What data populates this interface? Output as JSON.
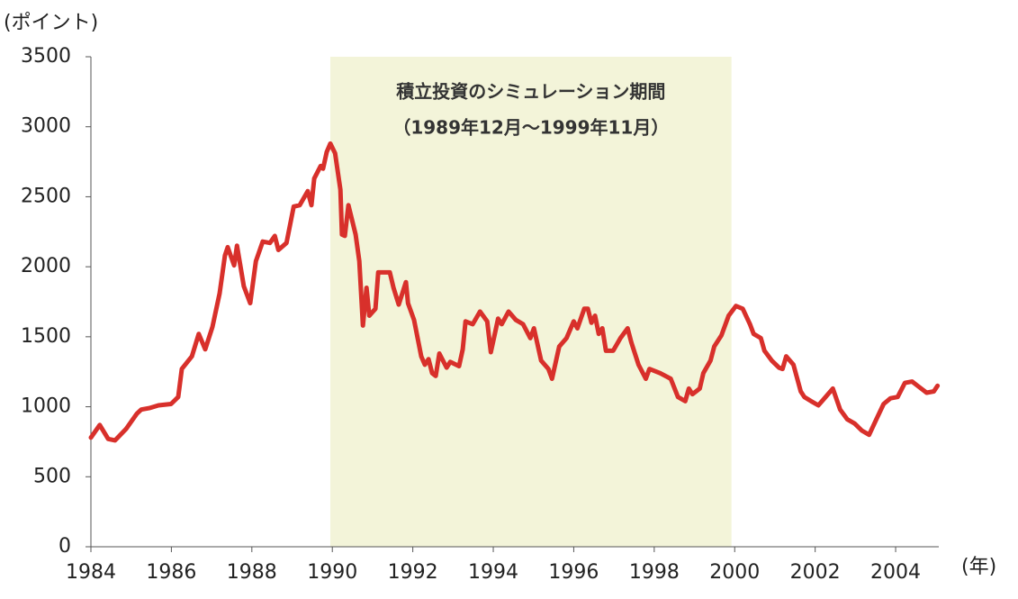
{
  "chart_data": {
    "type": "line",
    "y_axis_label": "(ポイント)",
    "x_axis_label": "(年)",
    "shaded_region": {
      "x": [
        1989.95,
        1999.92
      ],
      "label": [
        "積立投資のシミュレーション期間",
        "（1989年12月～1999年11月）"
      ],
      "color": "#f3f4d9"
    },
    "xlim": [
      1984,
      2005.05
    ],
    "xticks": [
      1984,
      1986,
      1988,
      1990,
      1992,
      1994,
      1996,
      1998,
      2000,
      2002,
      2004
    ],
    "ylim": [
      0,
      3500
    ],
    "yticks": [
      0,
      500,
      1000,
      1500,
      2000,
      2500,
      3000,
      3500
    ],
    "series": [
      {
        "color": "#d8302b",
        "x": [
          1984.0,
          1984.22,
          1984.43,
          1984.6,
          1984.87,
          1985.14,
          1985.25,
          1985.45,
          1985.68,
          1985.99,
          1986.17,
          1986.26,
          1986.51,
          1986.68,
          1986.84,
          1987.02,
          1987.2,
          1987.33,
          1987.4,
          1987.56,
          1987.63,
          1987.8,
          1987.96,
          1988.1,
          1988.27,
          1988.45,
          1988.57,
          1988.66,
          1988.86,
          1989.04,
          1989.19,
          1989.39,
          1989.48,
          1989.55,
          1989.71,
          1989.77,
          1989.86,
          1989.95,
          1990.07,
          1990.2,
          1990.24,
          1990.31,
          1990.4,
          1990.58,
          1990.67,
          1990.76,
          1990.85,
          1990.92,
          1991.07,
          1991.14,
          1991.43,
          1991.52,
          1991.65,
          1991.83,
          1991.88,
          1992.03,
          1992.21,
          1992.3,
          1992.39,
          1992.48,
          1992.57,
          1992.66,
          1992.84,
          1992.93,
          1993.15,
          1993.24,
          1993.31,
          1993.49,
          1993.67,
          1993.85,
          1993.94,
          1994.03,
          1994.12,
          1994.21,
          1994.38,
          1994.56,
          1994.74,
          1994.92,
          1995.01,
          1995.19,
          1995.37,
          1995.46,
          1995.64,
          1995.82,
          1996.0,
          1996.09,
          1996.26,
          1996.35,
          1996.44,
          1996.53,
          1996.62,
          1996.71,
          1996.8,
          1996.98,
          1997.16,
          1997.34,
          1997.43,
          1997.61,
          1997.79,
          1997.88,
          1998.15,
          1998.41,
          1998.59,
          1998.77,
          1998.86,
          1998.95,
          1999.13,
          1999.22,
          1999.4,
          1999.49,
          1999.67,
          1999.85,
          2000.03,
          2000.2,
          2000.38,
          2000.47,
          2000.65,
          2000.74,
          2000.92,
          2001.1,
          2001.19,
          2001.28,
          2001.46,
          2001.64,
          2001.73,
          2001.9,
          2002.08,
          2002.26,
          2002.44,
          2002.62,
          2002.8,
          2002.98,
          2003.16,
          2003.34,
          2003.52,
          2003.7,
          2003.87,
          2004.05,
          2004.23,
          2004.41,
          2004.59,
          2004.77,
          2004.95,
          2005.04
        ],
        "values": [
          780,
          870,
          770,
          760,
          840,
          950,
          980,
          990,
          1010,
          1020,
          1070,
          1270,
          1360,
          1520,
          1410,
          1570,
          1810,
          2080,
          2140,
          2010,
          2150,
          1860,
          1740,
          2040,
          2180,
          2170,
          2220,
          2120,
          2170,
          2430,
          2440,
          2540,
          2440,
          2630,
          2720,
          2700,
          2820,
          2880,
          2810,
          2550,
          2230,
          2220,
          2440,
          2230,
          2040,
          1580,
          1850,
          1650,
          1700,
          1960,
          1960,
          1850,
          1730,
          1890,
          1740,
          1620,
          1360,
          1300,
          1340,
          1240,
          1220,
          1380,
          1280,
          1320,
          1290,
          1410,
          1610,
          1590,
          1680,
          1610,
          1390,
          1510,
          1630,
          1590,
          1680,
          1620,
          1590,
          1490,
          1560,
          1330,
          1270,
          1200,
          1430,
          1490,
          1610,
          1560,
          1700,
          1700,
          1600,
          1650,
          1520,
          1560,
          1400,
          1400,
          1490,
          1560,
          1460,
          1300,
          1200,
          1270,
          1240,
          1200,
          1070,
          1040,
          1130,
          1090,
          1130,
          1240,
          1330,
          1430,
          1510,
          1650,
          1720,
          1700,
          1590,
          1520,
          1490,
          1400,
          1330,
          1280,
          1270,
          1360,
          1300,
          1110,
          1070,
          1040,
          1010,
          1070,
          1130,
          980,
          910,
          880,
          830,
          800,
          910,
          1020,
          1060,
          1070,
          1170,
          1180,
          1140,
          1100,
          1110,
          1150
        ]
      }
    ]
  }
}
